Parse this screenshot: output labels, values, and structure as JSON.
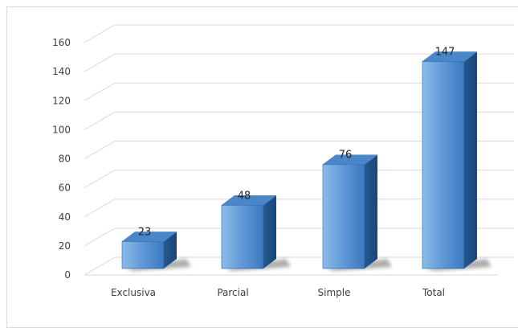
{
  "chart_data": {
    "type": "bar",
    "style": "3d-column",
    "categories": [
      "Exclusiva",
      "Parcial",
      "Simple",
      "Total"
    ],
    "values": [
      23,
      48,
      76,
      147
    ],
    "data_labels": [
      "23",
      "48",
      "76",
      "147"
    ],
    "yticks": [
      "0",
      "20",
      "40",
      "60",
      "80",
      "100",
      "120",
      "140",
      "160"
    ],
    "ylim": [
      0,
      160
    ],
    "grid": true,
    "legend": "none",
    "colors": {
      "front_light": "#7fb0e2",
      "front_dark": "#2f6fb8",
      "side": "#1f4f86",
      "top": "#4a86c8",
      "grid": "#d9d9d9",
      "shadow": "#6b6b6b",
      "text": "#404040"
    }
  }
}
